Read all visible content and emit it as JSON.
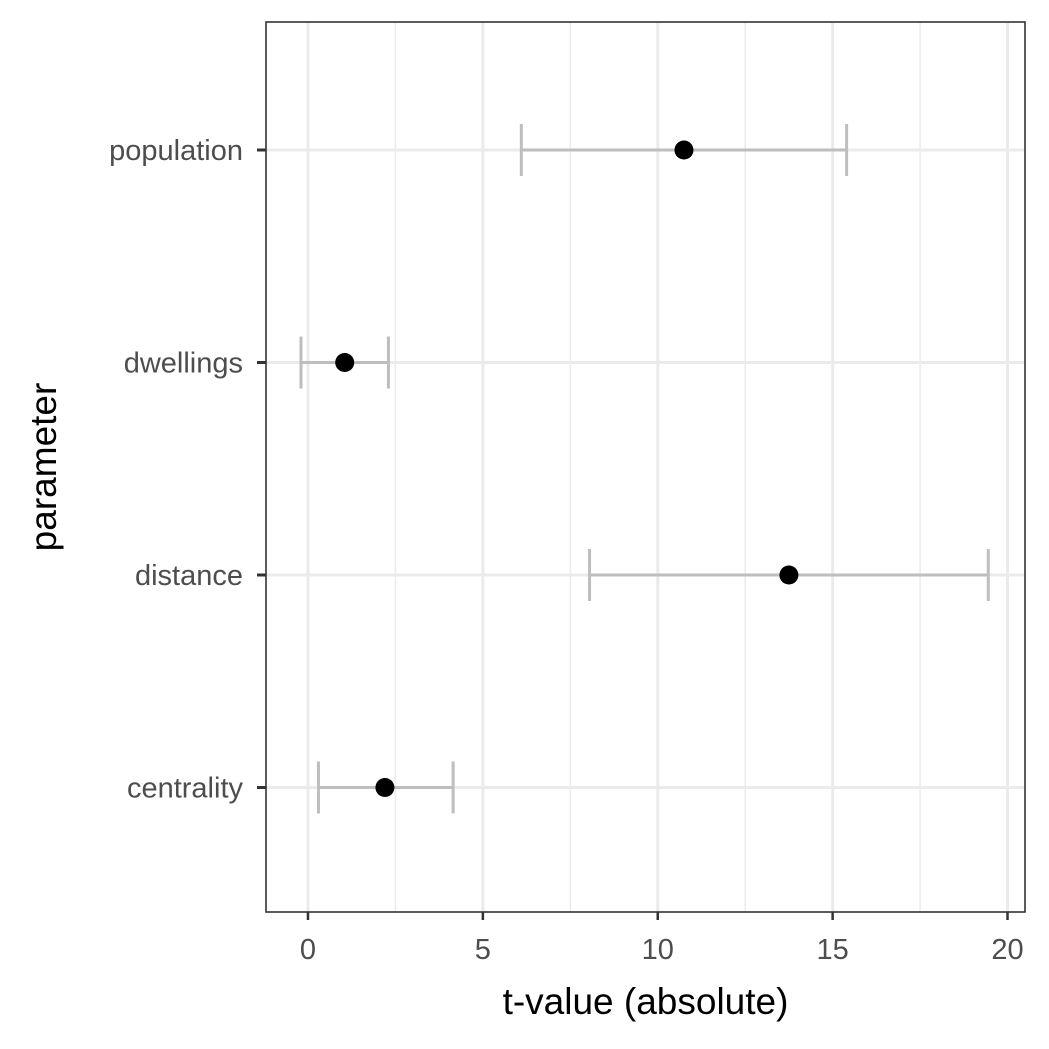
{
  "chart_data": {
    "type": "errorbar",
    "xlabel": "t-value (absolute)",
    "ylabel": "parameter",
    "xlim": [
      -1.2,
      20.5
    ],
    "xticks": [
      0,
      5,
      10,
      15,
      20
    ],
    "xtick_labels": [
      "0",
      "5",
      "10",
      "15",
      "20"
    ],
    "grid": true,
    "categories": [
      "population",
      "dwellings",
      "distance",
      "centrality"
    ],
    "points": [
      {
        "category": "population",
        "value": 10.75,
        "lower": 6.1,
        "upper": 15.4
      },
      {
        "category": "dwellings",
        "value": 1.05,
        "lower": -0.2,
        "upper": 2.3
      },
      {
        "category": "distance",
        "value": 13.75,
        "lower": 8.05,
        "upper": 19.45
      },
      {
        "category": "centrality",
        "value": 2.2,
        "lower": 0.3,
        "upper": 4.15
      }
    ],
    "colors": {
      "point": "#000000",
      "errorbar": "#bebebe",
      "grid": "#ebebeb",
      "panel_border": "#333333"
    }
  }
}
